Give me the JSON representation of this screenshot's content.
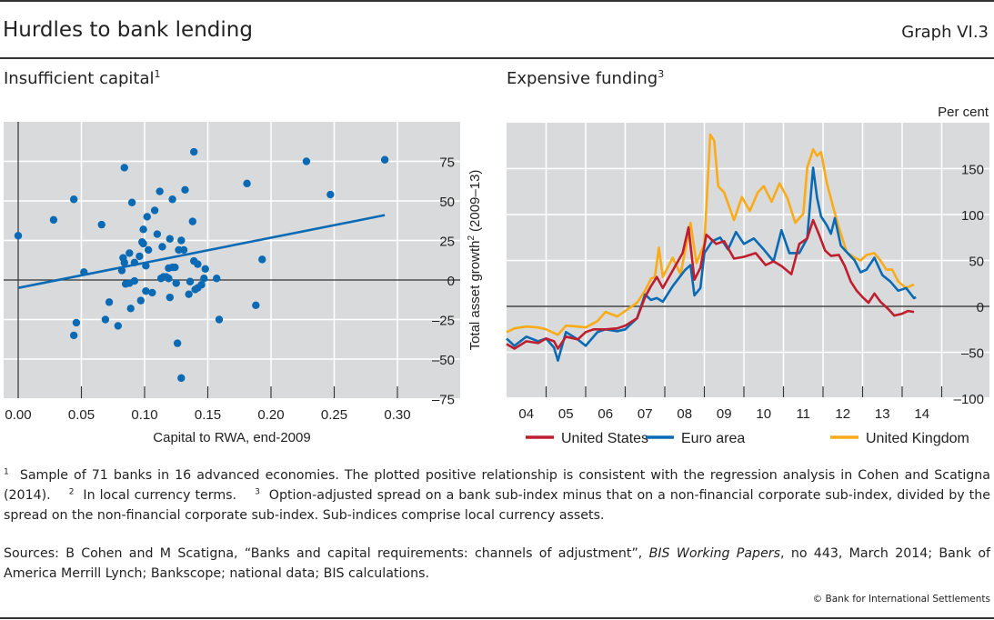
{
  "header": {
    "title": "Hurdles to bank lending",
    "graph_number": "Graph VI.3"
  },
  "colors": {
    "panel_bg": "#d9dadc",
    "scatter": "#0a6ab4",
    "united_states": "#be1e2d",
    "euro_area": "#0a6ab4",
    "united_kingdom": "#fbab18"
  },
  "chart_data": [
    {
      "id": "insufficient-capital",
      "type": "scatter",
      "title": "Insufficient capital",
      "title_footnote": "1",
      "xlabel": "Capital to RWA, end-2009",
      "ylabel": "Total asset growth",
      "ylabel_footnote": "2",
      "ylabel_suffix": "(2009–13)",
      "xlim": [
        0.0,
        0.335
      ],
      "ylim": [
        -75,
        90
      ],
      "xticks": [
        0.0,
        0.05,
        0.1,
        0.15,
        0.2,
        0.25,
        0.3
      ],
      "xtick_labels": [
        "0.00",
        "0.05",
        "0.10",
        "0.15",
        "0.20",
        "0.25",
        "0.30"
      ],
      "yticks": [
        -75,
        -50,
        -25,
        0,
        25,
        50,
        75
      ],
      "ytick_labels": [
        "–75",
        "–50",
        "–25",
        "0",
        "25",
        "50",
        "75"
      ],
      "grid": true,
      "points": [
        [
          0.0,
          28
        ],
        [
          0.028,
          38
        ],
        [
          0.044,
          51
        ],
        [
          0.066,
          35
        ],
        [
          0.084,
          71
        ],
        [
          0.139,
          81
        ],
        [
          0.112,
          56
        ],
        [
          0.132,
          57
        ],
        [
          0.122,
          51
        ],
        [
          0.09,
          49
        ],
        [
          0.108,
          44
        ],
        [
          0.102,
          40
        ],
        [
          0.138,
          37
        ],
        [
          0.099,
          32
        ],
        [
          0.11,
          29
        ],
        [
          0.12,
          26
        ],
        [
          0.129,
          25
        ],
        [
          0.098,
          24
        ],
        [
          0.099,
          23
        ],
        [
          0.114,
          21
        ],
        [
          0.103,
          19
        ],
        [
          0.127,
          19
        ],
        [
          0.131,
          19
        ],
        [
          0.088,
          17
        ],
        [
          0.096,
          15
        ],
        [
          0.083,
          14
        ],
        [
          0.084,
          11
        ],
        [
          0.092,
          11
        ],
        [
          0.139,
          12
        ],
        [
          0.142,
          10
        ],
        [
          0.101,
          9
        ],
        [
          0.082,
          6
        ],
        [
          0.119,
          7.5
        ],
        [
          0.122,
          8
        ],
        [
          0.124,
          8
        ],
        [
          0.148,
          7
        ],
        [
          0.052,
          5
        ],
        [
          0.115,
          2
        ],
        [
          0.119,
          1
        ],
        [
          0.147,
          1
        ],
        [
          0.157,
          1
        ],
        [
          0.125,
          -2
        ],
        [
          0.136,
          -1
        ],
        [
          0.145,
          -3
        ],
        [
          0.085,
          -2.5
        ],
        [
          0.088,
          -2
        ],
        [
          0.092,
          -0.6
        ],
        [
          0.101,
          -7
        ],
        [
          0.106,
          -8
        ],
        [
          0.12,
          -11
        ],
        [
          0.135,
          -9
        ],
        [
          0.142,
          -5
        ],
        [
          0.072,
          -14
        ],
        [
          0.097,
          -13
        ],
        [
          0.089,
          -18
        ],
        [
          0.069,
          -25
        ],
        [
          0.046,
          -27
        ],
        [
          0.079,
          -29
        ],
        [
          0.044,
          -35
        ],
        [
          0.159,
          -25
        ],
        [
          0.126,
          -40
        ],
        [
          0.129,
          -62
        ],
        [
          0.188,
          -16
        ],
        [
          0.193,
          13
        ],
        [
          0.181,
          61
        ],
        [
          0.228,
          75
        ],
        [
          0.247,
          54
        ],
        [
          0.29,
          76
        ],
        [
          0.117,
          2
        ],
        [
          0.14,
          -6
        ],
        [
          0.113,
          1
        ]
      ],
      "trendline": {
        "x": [
          0.0,
          0.29
        ],
        "y": [
          -5,
          41
        ]
      }
    },
    {
      "id": "expensive-funding",
      "type": "line",
      "title": "Expensive funding",
      "title_footnote": "3",
      "unit_label": "Per cent",
      "xlim": [
        2004.0,
        2015.2
      ],
      "ylim": [
        -100,
        190
      ],
      "xticks": [
        2004,
        2005,
        2006,
        2007,
        2008,
        2009,
        2010,
        2011,
        2012,
        2013,
        2014
      ],
      "xtick_labels": [
        "04",
        "05",
        "06",
        "07",
        "08",
        "09",
        "10",
        "11",
        "12",
        "13",
        "14"
      ],
      "yticks": [
        -100,
        -50,
        0,
        50,
        100,
        150
      ],
      "ytick_labels": [
        "–100",
        "–50",
        "0",
        "50",
        "100",
        "150"
      ],
      "grid": true,
      "series": [
        {
          "name": "United States",
          "color_key": "united_states",
          "x": [
            2004.0,
            2004.2,
            2004.5,
            2004.8,
            2005.0,
            2005.2,
            2005.3,
            2005.5,
            2005.8,
            2006.0,
            2006.2,
            2006.5,
            2006.8,
            2007.0,
            2007.3,
            2007.5,
            2007.65,
            2007.8,
            2007.95,
            2008.2,
            2008.45,
            2008.6,
            2008.75,
            2008.9,
            2009.05,
            2009.3,
            2009.5,
            2009.75,
            2010.0,
            2010.3,
            2010.55,
            2010.75,
            2010.95,
            2011.2,
            2011.4,
            2011.6,
            2011.75,
            2011.9,
            2012.05,
            2012.2,
            2012.4,
            2012.55,
            2012.7,
            2012.85,
            2013.0,
            2013.15,
            2013.3,
            2013.45,
            2013.65,
            2013.8,
            2014.0,
            2014.15,
            2014.3
          ],
          "y": [
            -41,
            -46,
            -38,
            -40,
            -35,
            -38,
            -46,
            -33,
            -36,
            -28,
            -25,
            -25,
            -24,
            -21,
            -13,
            10,
            22,
            32,
            20,
            39,
            58,
            86,
            29,
            42,
            78,
            68,
            71,
            52,
            54,
            58,
            45,
            49,
            44,
            35,
            68,
            74,
            94,
            78,
            61,
            55,
            56,
            44,
            27,
            17,
            10,
            4,
            14,
            5,
            -3,
            -10,
            -8,
            -5,
            -6
          ]
        },
        {
          "name": "Euro area",
          "color_key": "euro_area",
          "x": [
            2004.0,
            2004.2,
            2004.5,
            2004.8,
            2005.0,
            2005.2,
            2005.3,
            2005.5,
            2005.8,
            2006.0,
            2006.3,
            2006.5,
            2006.8,
            2007.0,
            2007.3,
            2007.5,
            2007.65,
            2007.8,
            2007.95,
            2008.2,
            2008.5,
            2008.65,
            2008.75,
            2008.9,
            2009.0,
            2009.2,
            2009.4,
            2009.6,
            2009.8,
            2010.0,
            2010.25,
            2010.5,
            2010.75,
            2010.95,
            2011.15,
            2011.4,
            2011.6,
            2011.75,
            2011.85,
            2011.95,
            2012.1,
            2012.2,
            2012.3,
            2012.45,
            2012.6,
            2012.8,
            2012.95,
            2013.1,
            2013.3,
            2013.5,
            2013.7,
            2013.9,
            2014.1,
            2014.3,
            2014.35
          ],
          "y": [
            -35,
            -43,
            -33,
            -38,
            -35,
            -45,
            -59,
            -28,
            -36,
            -43,
            -28,
            -25,
            -27,
            -25,
            -13,
            13,
            7,
            9,
            5,
            22,
            39,
            45,
            12,
            20,
            58,
            71,
            75,
            62,
            81,
            68,
            74,
            62,
            49,
            83,
            58,
            58,
            74,
            151,
            118,
            98,
            88,
            79,
            96,
            66,
            59,
            50,
            37,
            40,
            53,
            34,
            27,
            17,
            20,
            9,
            10
          ]
        },
        {
          "name": "United Kingdom",
          "color_key": "united_kingdom",
          "x": [
            2004.0,
            2004.2,
            2004.5,
            2004.8,
            2005.0,
            2005.3,
            2005.5,
            2005.8,
            2006.0,
            2006.3,
            2006.5,
            2006.8,
            2007.0,
            2007.3,
            2007.5,
            2007.65,
            2007.75,
            2007.85,
            2007.95,
            2008.2,
            2008.4,
            2008.65,
            2008.8,
            2009.0,
            2009.15,
            2009.25,
            2009.35,
            2009.5,
            2009.75,
            2009.95,
            2010.15,
            2010.35,
            2010.5,
            2010.7,
            2010.9,
            2011.1,
            2011.3,
            2011.5,
            2011.6,
            2011.75,
            2011.85,
            2011.95,
            2012.1,
            2012.25,
            2012.4,
            2012.6,
            2012.8,
            2012.95,
            2013.1,
            2013.3,
            2013.45,
            2013.6,
            2013.75,
            2013.9,
            2014.1,
            2014.3
          ],
          "y": [
            -28,
            -24,
            -22,
            -23,
            -25,
            -31,
            -21,
            -22,
            -23,
            -16,
            -6,
            -11,
            -5,
            4,
            17,
            30,
            32,
            64,
            32,
            53,
            35,
            91,
            47,
            68,
            187,
            180,
            131,
            124,
            94,
            119,
            104,
            124,
            131,
            114,
            134,
            118,
            91,
            101,
            151,
            171,
            164,
            168,
            134,
            109,
            86,
            59,
            53,
            50,
            56,
            58,
            50,
            40,
            40,
            27,
            20,
            24
          ]
        }
      ]
    }
  ],
  "footnotes": {
    "n1": "1",
    "t1": "Sample of 71 banks in 16 advanced economies. The plotted positive relationship is consistent with the regression analysis in Cohen and Scatigna (2014).",
    "n2": "2",
    "t2": "In local currency terms.",
    "n3": "3",
    "t3": "Option-adjusted spread on a bank sub-index minus that on a non-financial corporate sub-index, divided by the spread on the non-financial corporate sub-index. Sub-indices comprise local currency assets."
  },
  "sources": {
    "prefix": "Sources: B Cohen and M Scatigna, “Banks and capital requirements: channels of adjustment”, ",
    "italic": "BIS Working Papers",
    "suffix": ", no 443, March 2014; Bank of America Merrill Lynch; Bankscope; national data; BIS calculations."
  },
  "copyright": "© Bank for International Settlements"
}
